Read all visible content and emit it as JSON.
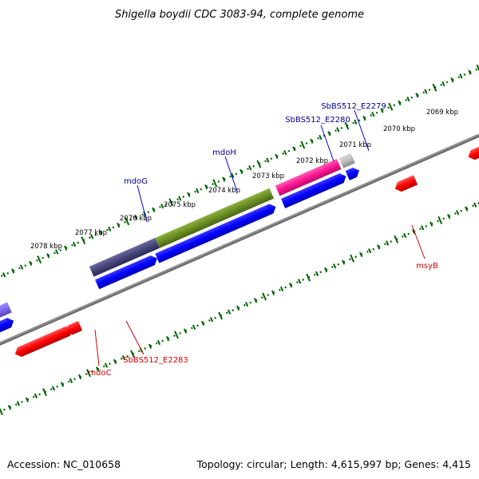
{
  "title": "Shigella boydii CDC 3083-94, complete genome",
  "footer": {
    "accession": "Accession: NC_010658",
    "summary": "Topology: circular; Length: 4,615,997 bp; Genes: 4,415"
  },
  "ticks": [
    "2078 kbp",
    "2077 kbp",
    "2076 kbp",
    "2075 kbp",
    "2074 kbp",
    "2073 kbp",
    "2072 kbp",
    "2071 kbp",
    "2070 kbp",
    "2069 kbp"
  ],
  "gene_labels": {
    "mdoG": "mdoG",
    "mdoH": "mdoH",
    "e2280": "SbBS512_E2280",
    "e2279": "SbBS512_E2279",
    "msyB": "msyB",
    "e2283": "SbBS512_E2283",
    "mdoC": "mdoC"
  },
  "colors": {
    "backbone": "#7f7f7f",
    "forward_cds": "#0000ff",
    "reverse_cds": "#ff0000",
    "tick_green": "#006400",
    "mdoG_bar": "#45457a",
    "mdoH_bar": "#6b8e23",
    "e2280_bar": "#ff1493",
    "e2279_bar": "#bebebe",
    "purple_bar": "#7b68ee",
    "label_blue": "#00008b",
    "label_red": "#cd0000"
  }
}
